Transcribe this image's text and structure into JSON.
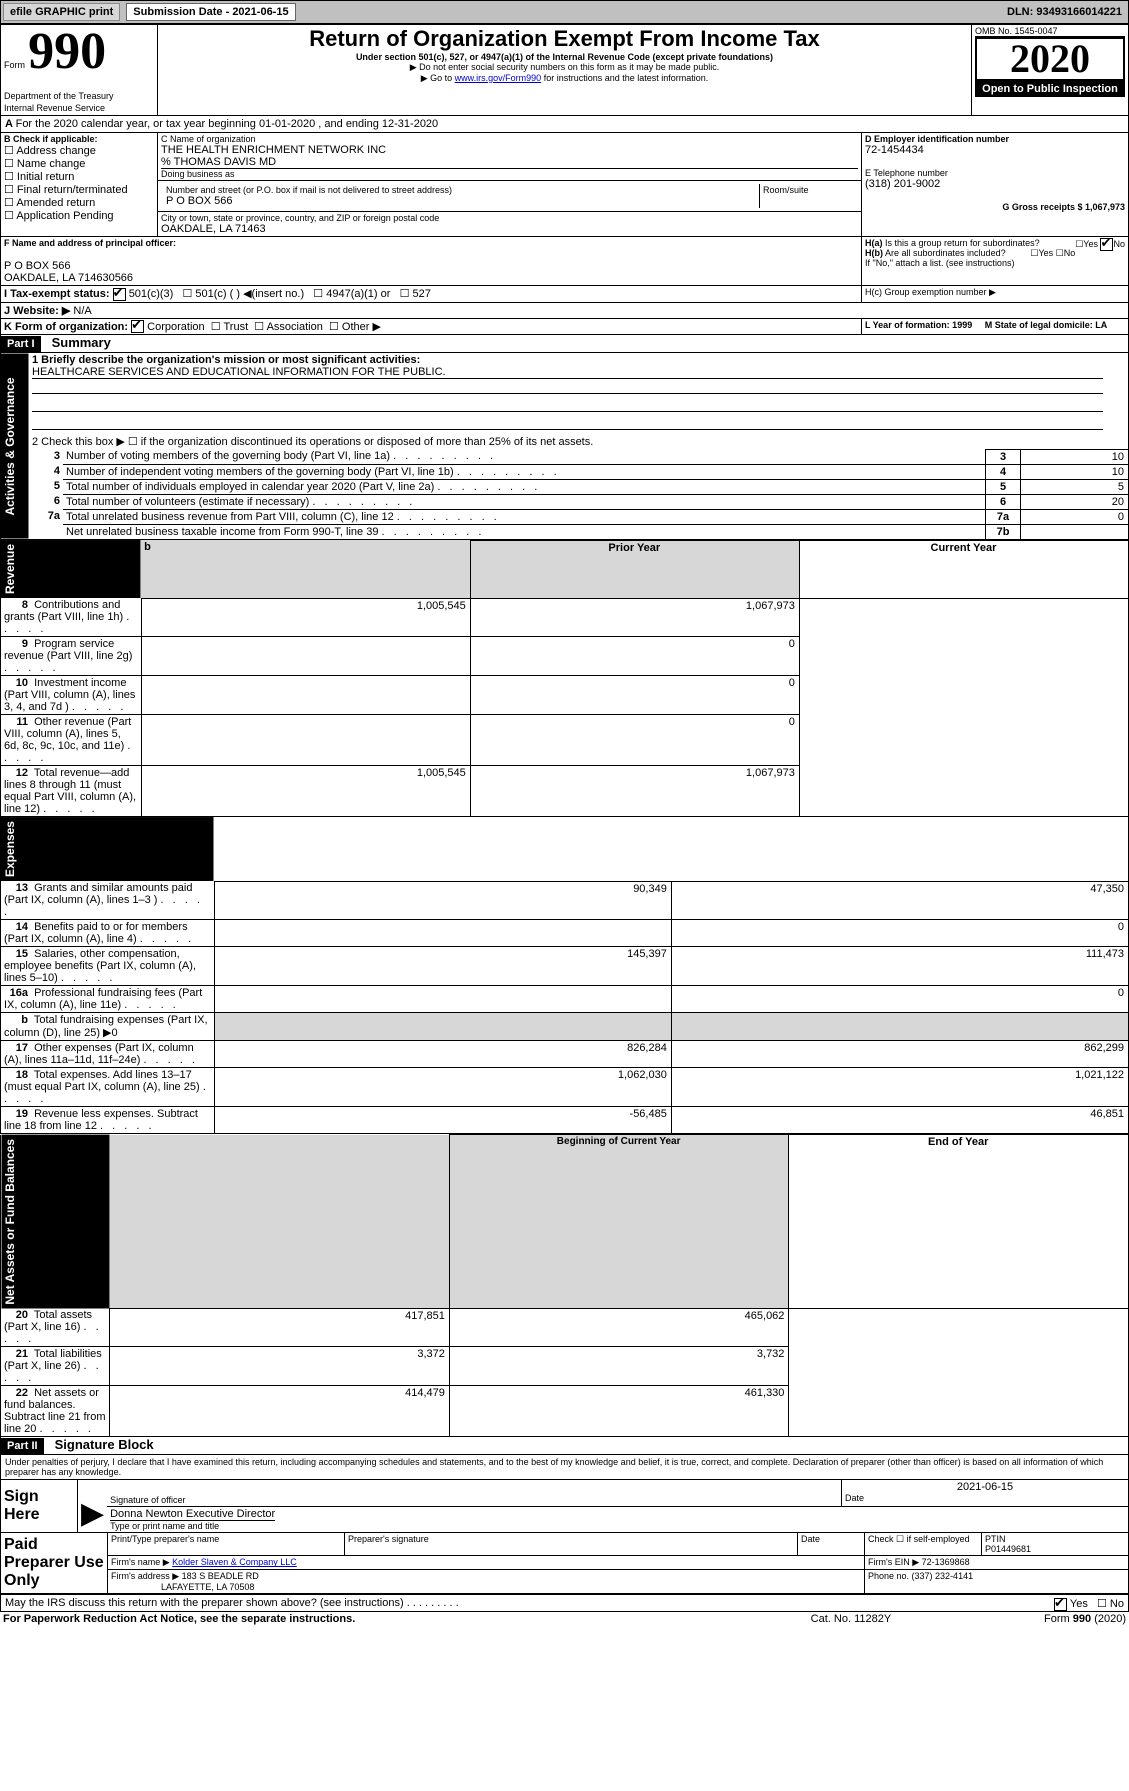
{
  "top": {
    "efile": "efile GRAPHIC print",
    "subm_label": "Submission Date - 2021-06-15",
    "dln": "DLN: 93493166014221"
  },
  "header": {
    "form": "Form",
    "form_no": "990",
    "dept": "Department of the Treasury\nInternal Revenue Service",
    "title": "Return of Organization Exempt From Income Tax",
    "sub1": "Under section 501(c), 527, or 4947(a)(1) of the Internal Revenue Code (except private foundations)",
    "sub2": "▶ Do not enter social security numbers on this form as it may be made public.",
    "sub3": "▶ Go to www.irs.gov/Form990 for instructions and the latest information.",
    "omb": "OMB No. 1545-0047",
    "year": "2020",
    "open": "Open to Public Inspection"
  },
  "a_line": "For the 2020 calendar year, or tax year beginning 01-01-2020     , and ending 12-31-2020",
  "b": {
    "label": "B Check if applicable:",
    "items": [
      "Address change",
      "Name change",
      "Initial return",
      "Final return/terminated",
      "Amended return",
      "Application Pending"
    ]
  },
  "c": {
    "name_label": "C Name of organization",
    "name": "THE HEALTH ENRICHMENT NETWORK INC",
    "care": "% THOMAS DAVIS MD",
    "dba_label": "Doing business as",
    "addr_label": "Number and street (or P.O. box if mail is not delivered to street address)",
    "room": "Room/suite",
    "addr": "P O BOX 566",
    "city_label": "City or town, state or province, country, and ZIP or foreign postal code",
    "city": "OAKDALE, LA  71463"
  },
  "d": {
    "label": "D Employer identification number",
    "val": "72-1454434"
  },
  "e": {
    "label": "E Telephone number",
    "val": "(318) 201-9002"
  },
  "g": {
    "label": "G Gross receipts $ 1,067,973"
  },
  "f": {
    "label": "F Name and address of principal officer:",
    "addr1": "P O BOX 566",
    "addr2": "OAKDALE, LA  714630566"
  },
  "h": {
    "a": "H(a)  Is this a group return for subordinates?",
    "b": "H(b)  Are all subordinates included?",
    "note": "If \"No,\" attach a list. (see instructions)",
    "c": "H(c)  Group exemption number ▶"
  },
  "i": {
    "label": "Tax-exempt status:",
    "opts": [
      "501(c)(3)",
      "501(c) (  ) ◀(insert no.)",
      "4947(a)(1) or",
      "527"
    ]
  },
  "j": {
    "label": "J   Website: ▶",
    "val": "N/A"
  },
  "k": {
    "label": "K Form of organization:",
    "opts": [
      "Corporation",
      "Trust",
      "Association",
      "Other ▶"
    ]
  },
  "l": {
    "label": "L Year of formation: 1999"
  },
  "m": {
    "label": "M State of legal domicile: LA"
  },
  "part1": {
    "header": "Part I",
    "title": "Summary",
    "q1": "1  Briefly describe the organization's mission or most significant activities:",
    "q1v": "HEALTHCARE SERVICES AND EDUCATIONAL INFORMATION FOR THE PUBLIC.",
    "q2": "2   Check this box ▶ ☐  if the organization discontinued its operations or disposed of more than 25% of its net assets.",
    "rows_top": [
      {
        "n": "3",
        "t": "Number of voting members of the governing body (Part VI, line 1a)",
        "l": "3",
        "v": "10"
      },
      {
        "n": "4",
        "t": "Number of independent voting members of the governing body (Part VI, line 1b)",
        "l": "4",
        "v": "10"
      },
      {
        "n": "5",
        "t": "Total number of individuals employed in calendar year 2020 (Part V, line 2a)",
        "l": "5",
        "v": "5"
      },
      {
        "n": "6",
        "t": "Total number of volunteers (estimate if necessary)",
        "l": "6",
        "v": "20"
      },
      {
        "n": "7a",
        "t": "Total unrelated business revenue from Part VIII, column (C), line 12",
        "l": "7a",
        "v": "0"
      },
      {
        "n": "",
        "t": "Net unrelated business taxable income from Form 990-T, line 39",
        "l": "7b",
        "v": ""
      }
    ],
    "col_prior": "Prior Year",
    "col_curr": "Current Year",
    "revenue": [
      {
        "n": "8",
        "t": "Contributions and grants (Part VIII, line 1h)",
        "p": "1,005,545",
        "c": "1,067,973"
      },
      {
        "n": "9",
        "t": "Program service revenue (Part VIII, line 2g)",
        "p": "",
        "c": "0"
      },
      {
        "n": "10",
        "t": "Investment income (Part VIII, column (A), lines 3, 4, and 7d )",
        "p": "",
        "c": "0"
      },
      {
        "n": "11",
        "t": "Other revenue (Part VIII, column (A), lines 5, 6d, 8c, 9c, 10c, and 11e)",
        "p": "",
        "c": "0"
      },
      {
        "n": "12",
        "t": "Total revenue—add lines 8 through 11 (must equal Part VIII, column (A), line 12)",
        "p": "1,005,545",
        "c": "1,067,973"
      }
    ],
    "expenses": [
      {
        "n": "13",
        "t": "Grants and similar amounts paid (Part IX, column (A), lines 1–3 )",
        "p": "90,349",
        "c": "47,350"
      },
      {
        "n": "14",
        "t": "Benefits paid to or for members (Part IX, column (A), line 4)",
        "p": "",
        "c": "0"
      },
      {
        "n": "15",
        "t": "Salaries, other compensation, employee benefits (Part IX, column (A), lines 5–10)",
        "p": "145,397",
        "c": "111,473"
      },
      {
        "n": "16a",
        "t": "Professional fundraising fees (Part IX, column (A), line 11e)",
        "p": "",
        "c": "0"
      },
      {
        "n": "b",
        "t": "Total fundraising expenses (Part IX, column (D), line 25) ▶0",
        "p": "GRAY",
        "c": "GRAY"
      },
      {
        "n": "17",
        "t": "Other expenses (Part IX, column (A), lines 11a–11d, 11f–24e)",
        "p": "826,284",
        "c": "862,299"
      },
      {
        "n": "18",
        "t": "Total expenses. Add lines 13–17 (must equal Part IX, column (A), line 25)",
        "p": "1,062,030",
        "c": "1,021,122"
      },
      {
        "n": "19",
        "t": "Revenue less expenses. Subtract line 18 from line 12",
        "p": "-56,485",
        "c": "46,851"
      }
    ],
    "col_begin": "Beginning of Current Year",
    "col_end": "End of Year",
    "net": [
      {
        "n": "20",
        "t": "Total assets (Part X, line 16)",
        "p": "417,851",
        "c": "465,062"
      },
      {
        "n": "21",
        "t": "Total liabilities (Part X, line 26)",
        "p": "3,372",
        "c": "3,732"
      },
      {
        "n": "22",
        "t": "Net assets or fund balances. Subtract line 21 from line 20",
        "p": "414,479",
        "c": "461,330"
      }
    ],
    "side_ag": "Activities & Governance",
    "side_rev": "Revenue",
    "side_exp": "Expenses",
    "side_net": "Net Assets or Fund Balances"
  },
  "part2": {
    "header": "Part II",
    "title": "Signature Block",
    "perjury": "Under penalties of perjury, I declare that I have examined this return, including accompanying schedules and statements, and to the best of my knowledge and belief, it is true, correct, and complete. Declaration of preparer (other than officer) is based on all information of which preparer has any knowledge.",
    "sign_here": "Sign Here",
    "sig_officer": "Signature of officer",
    "date": "2021-06-15",
    "date_lbl": "Date",
    "officer_name": "Donna Newton  Executive Director",
    "type_name": "Type or print name and title",
    "paid": "Paid Preparer Use Only",
    "print_name": "Print/Type preparer's name",
    "prep_sig": "Preparer's signature",
    "check_se": "Check ☐ if self-employed",
    "ptin_lbl": "PTIN",
    "ptin": "P01449681",
    "firm_name_lbl": "Firm's name    ▶",
    "firm_name": "Kolder Slaven & Company LLC",
    "firm_ein": "Firm's EIN ▶ 72-1369868",
    "firm_addr_lbl": "Firm's address ▶",
    "firm_addr": "183 S BEADLE RD",
    "firm_city": "LAFAYETTE, LA  70508",
    "firm_phone": "Phone no. (337) 232-4141",
    "discuss": "May the IRS discuss this return with the preparer shown above? (see instructions)",
    "paperwork": "For Paperwork Reduction Act Notice, see the separate instructions.",
    "cat": "Cat. No. 11282Y",
    "form_foot": "Form 990 (2020)"
  }
}
